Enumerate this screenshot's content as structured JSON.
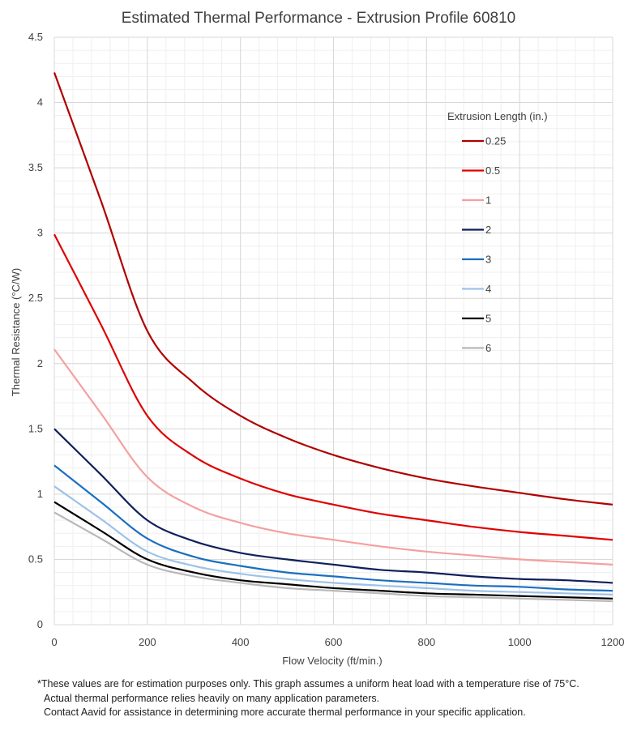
{
  "colors": {
    "0.25": "#b00000",
    "0.5": "#e00000",
    "1": "#f4a0a0",
    "2": "#0f1f5c",
    "3": "#1a6fbf",
    "4": "#9dc2e8",
    "5": "#000000",
    "6": "#b8b8b8"
  },
  "footnotes": [
    "*These values are for estimation purposes only. This graph assumes a uniform heat load with a temperature rise of 75°C.",
    "Actual thermal performance relies heavily on many application parameters.",
    "Contact Aavid for assistance in determining more accurate thermal performance in your specific application."
  ],
  "chart_data": {
    "type": "line",
    "title": "Estimated Thermal Performance - Extrusion Profile 60810",
    "xlabel": "Flow Velocity (ft/min.)",
    "ylabel": "Thermal Resistance (°C/W)",
    "xlim": [
      0,
      1200
    ],
    "ylim": [
      0,
      4.5
    ],
    "xticks": [
      0,
      200,
      400,
      600,
      800,
      1000,
      1200
    ],
    "yticks": [
      0,
      0.5,
      1,
      1.5,
      2,
      2.5,
      3,
      3.5,
      4,
      4.5
    ],
    "ytick_labels": [
      "0",
      "0.5",
      "1",
      "1.5",
      "2",
      "2.5",
      "3",
      "3.5",
      "4",
      "4.5"
    ],
    "grid": true,
    "legend_title": "Extrusion Length (in.)",
    "legend_position": "right",
    "x": [
      0,
      100,
      200,
      300,
      400,
      500,
      600,
      700,
      800,
      900,
      1000,
      1100,
      1200
    ],
    "series": [
      {
        "name": "0.25",
        "values": [
          4.23,
          3.25,
          2.25,
          1.85,
          1.6,
          1.43,
          1.3,
          1.2,
          1.12,
          1.06,
          1.01,
          0.96,
          0.92
        ]
      },
      {
        "name": "0.5",
        "values": [
          2.99,
          2.3,
          1.6,
          1.29,
          1.12,
          1.0,
          0.92,
          0.85,
          0.8,
          0.75,
          0.71,
          0.68,
          0.65
        ]
      },
      {
        "name": "1",
        "values": [
          2.11,
          1.62,
          1.13,
          0.9,
          0.78,
          0.7,
          0.65,
          0.6,
          0.56,
          0.53,
          0.5,
          0.48,
          0.46
        ]
      },
      {
        "name": "2",
        "values": [
          1.5,
          1.15,
          0.8,
          0.64,
          0.55,
          0.5,
          0.46,
          0.42,
          0.4,
          0.37,
          0.35,
          0.34,
          0.32
        ]
      },
      {
        "name": "3",
        "values": [
          1.22,
          0.94,
          0.66,
          0.52,
          0.45,
          0.4,
          0.37,
          0.34,
          0.32,
          0.3,
          0.29,
          0.27,
          0.26
        ]
      },
      {
        "name": "4",
        "values": [
          1.06,
          0.81,
          0.56,
          0.45,
          0.39,
          0.35,
          0.32,
          0.3,
          0.28,
          0.26,
          0.25,
          0.24,
          0.23
        ]
      },
      {
        "name": "5",
        "values": [
          0.94,
          0.72,
          0.5,
          0.4,
          0.34,
          0.31,
          0.28,
          0.26,
          0.24,
          0.23,
          0.22,
          0.21,
          0.2
        ]
      },
      {
        "name": "6",
        "values": [
          0.86,
          0.66,
          0.46,
          0.37,
          0.32,
          0.28,
          0.26,
          0.24,
          0.22,
          0.21,
          0.2,
          0.19,
          0.18
        ]
      }
    ]
  }
}
